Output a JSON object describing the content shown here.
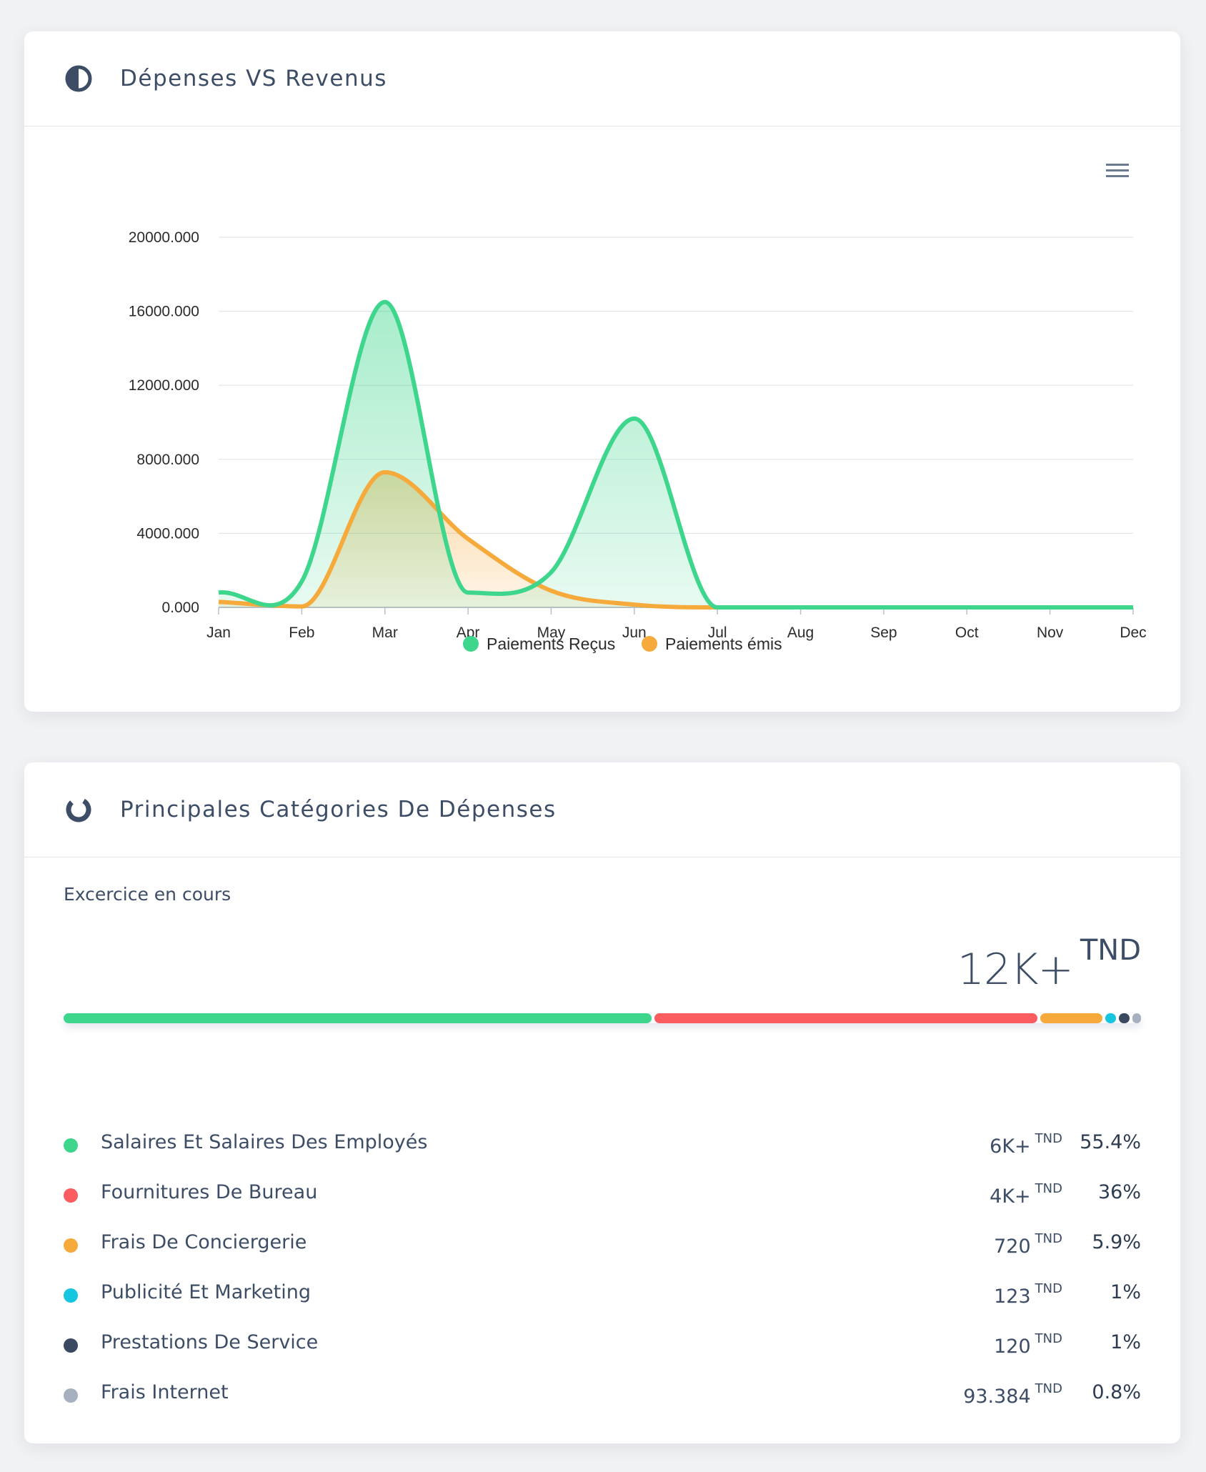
{
  "card1": {
    "title": "Dépenses VS Revenus",
    "icon": "half-circle-icon",
    "menu_icon": "hamburger-menu-icon"
  },
  "chart_data": {
    "type": "area",
    "categories": [
      "Jan",
      "Feb",
      "Mar",
      "Apr",
      "May",
      "Jun",
      "Jul",
      "Aug",
      "Sep",
      "Oct",
      "Nov",
      "Dec"
    ],
    "y_ticks": [
      "0.000",
      "4000.000",
      "8000.000",
      "12000.000",
      "16000.000",
      "20000.000"
    ],
    "ylim": [
      0,
      20000
    ],
    "grid": true,
    "legend_position": "bottom",
    "series": [
      {
        "name": "Paiements Reçus",
        "color": "#3dd68c",
        "values": [
          800,
          1400,
          16500,
          800,
          1900,
          10200,
          0,
          0,
          0,
          0,
          0,
          0
        ]
      },
      {
        "name": "Paiements émis",
        "color": "#f6aa3c",
        "values": [
          300,
          50,
          7300,
          3700,
          900,
          150,
          0,
          0,
          0,
          0,
          0,
          0
        ]
      }
    ]
  },
  "card2": {
    "title": "Principales Catégories De Dépenses",
    "icon": "donut-chart-icon",
    "subtitle": "Excercice en cours",
    "total_value": "12K+",
    "total_unit": "TND"
  },
  "categories": [
    {
      "name": "Salaires Et Salaires Des Employés",
      "amount": "6K+",
      "unit": "TND",
      "percent": "55.4%",
      "share": 55.4,
      "color": "#3dd68c"
    },
    {
      "name": "Fournitures De Bureau",
      "amount": "4K+",
      "unit": "TND",
      "percent": "36%",
      "share": 36,
      "color": "#fb5c5f"
    },
    {
      "name": "Frais De Conciergerie",
      "amount": "720",
      "unit": "TND",
      "percent": "5.9%",
      "share": 5.9,
      "color": "#f6aa3c"
    },
    {
      "name": "Publicité Et Marketing",
      "amount": "123",
      "unit": "TND",
      "percent": "1%",
      "share": 1,
      "color": "#16c5e0"
    },
    {
      "name": "Prestations De Service",
      "amount": "120",
      "unit": "TND",
      "percent": "1%",
      "share": 1,
      "color": "#3a4860"
    },
    {
      "name": "Frais Internet",
      "amount": "93.384",
      "unit": "TND",
      "percent": "0.8%",
      "share": 0.8,
      "color": "#a6b0bf"
    }
  ]
}
